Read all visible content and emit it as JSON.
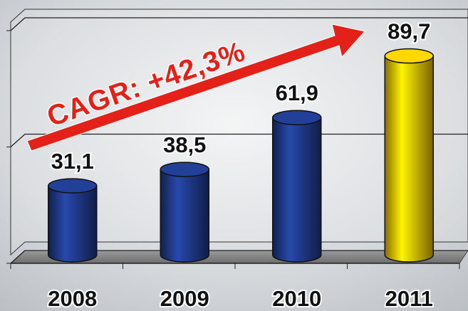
{
  "chart_data": {
    "type": "bar",
    "annotation": "CAGR: +42,3%",
    "categories": [
      "2008",
      "2009",
      "2010",
      "2011"
    ],
    "values": [
      31.1,
      38.5,
      61.9,
      89.7
    ],
    "value_labels": [
      "31,1",
      "38,5",
      "61,9",
      "89,7"
    ],
    "colors": [
      "#1f3a8a",
      "#1f3a8a",
      "#1f3a8a",
      "#f5c400"
    ],
    "ylim": [
      0,
      105
    ],
    "yticks": [
      0,
      52.5,
      105
    ],
    "grid": true
  }
}
